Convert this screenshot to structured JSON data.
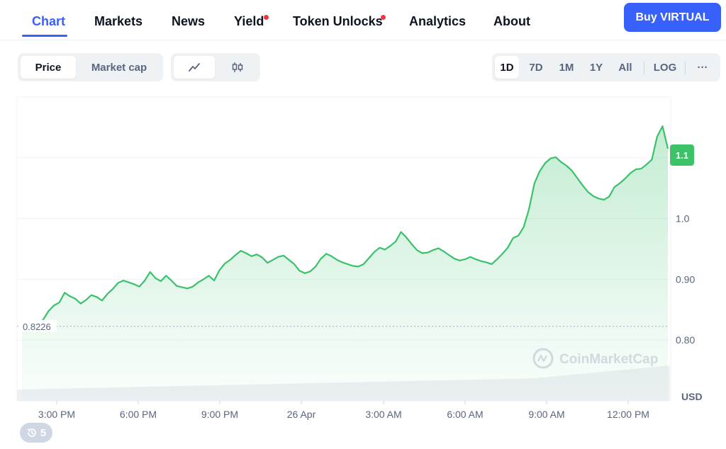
{
  "nav": {
    "tabs": [
      {
        "label": "Chart",
        "active": true
      },
      {
        "label": "Markets"
      },
      {
        "label": "News"
      },
      {
        "label": "Yield",
        "dot": true
      },
      {
        "label": "Token Unlocks",
        "dot": true
      },
      {
        "label": "Analytics"
      },
      {
        "label": "About"
      }
    ],
    "buy_label": "Buy VIRTUAL"
  },
  "toolbar": {
    "metric_tabs": [
      "Price",
      "Market cap"
    ],
    "chart_style_icons": [
      "line-chart-icon",
      "candlestick-icon"
    ],
    "ranges": [
      "1D",
      "7D",
      "1M",
      "1Y",
      "All"
    ],
    "log_label": "LOG",
    "more_label": "···"
  },
  "watermark": "CoinMarketCap",
  "history_badge": {
    "icon": "history-icon",
    "count": "5"
  },
  "colors": {
    "accent": "#3861fb",
    "line": "#3ac16c",
    "price_tag": "#3cc36a",
    "alert_dot": "#ea3943"
  },
  "chart_data": {
    "type": "area",
    "x_ticks": [
      "3:00 PM",
      "6:00 PM",
      "9:00 PM",
      "26 Apr",
      "3:00 AM",
      "6:00 AM",
      "9:00 AM",
      "12:00 PM"
    ],
    "y_ticks": [
      "0.80",
      "0.90",
      "1.0",
      "1.1"
    ],
    "y_values": [
      0.8,
      0.9,
      1.0,
      1.1
    ],
    "ylim": [
      0.7,
      1.2
    ],
    "y_unit": "USD",
    "current_price_label": "1.1",
    "open_price": 0.8226,
    "open_price_label": "0.8226",
    "grid": true,
    "series": [
      {
        "values": [
          0.822,
          0.825,
          0.823,
          0.826,
          0.834,
          0.848,
          0.857,
          0.862,
          0.878,
          0.872,
          0.868,
          0.86,
          0.866,
          0.874,
          0.871,
          0.865,
          0.876,
          0.884,
          0.894,
          0.898,
          0.895,
          0.892,
          0.888,
          0.898,
          0.912,
          0.902,
          0.897,
          0.906,
          0.898,
          0.889,
          0.887,
          0.885,
          0.888,
          0.895,
          0.9,
          0.906,
          0.898,
          0.915,
          0.926,
          0.932,
          0.94,
          0.947,
          0.943,
          0.938,
          0.941,
          0.936,
          0.927,
          0.932,
          0.937,
          0.939,
          0.932,
          0.925,
          0.914,
          0.91,
          0.913,
          0.921,
          0.934,
          0.942,
          0.938,
          0.932,
          0.928,
          0.925,
          0.922,
          0.921,
          0.925,
          0.935,
          0.945,
          0.952,
          0.949,
          0.955,
          0.962,
          0.978,
          0.969,
          0.958,
          0.948,
          0.943,
          0.944,
          0.948,
          0.951,
          0.946,
          0.94,
          0.934,
          0.931,
          0.933,
          0.937,
          0.933,
          0.93,
          0.928,
          0.925,
          0.933,
          0.942,
          0.952,
          0.968,
          0.972,
          0.986,
          1.016,
          1.058,
          1.078,
          1.091,
          1.099,
          1.101,
          1.093,
          1.087,
          1.079,
          1.067,
          1.055,
          1.044,
          1.037,
          1.033,
          1.031,
          1.036,
          1.052,
          1.058,
          1.066,
          1.075,
          1.081,
          1.082,
          1.089,
          1.097,
          1.135,
          1.152,
          1.115
        ]
      }
    ],
    "volume_note": "background volume bars (unlabeled), rising gradually"
  }
}
